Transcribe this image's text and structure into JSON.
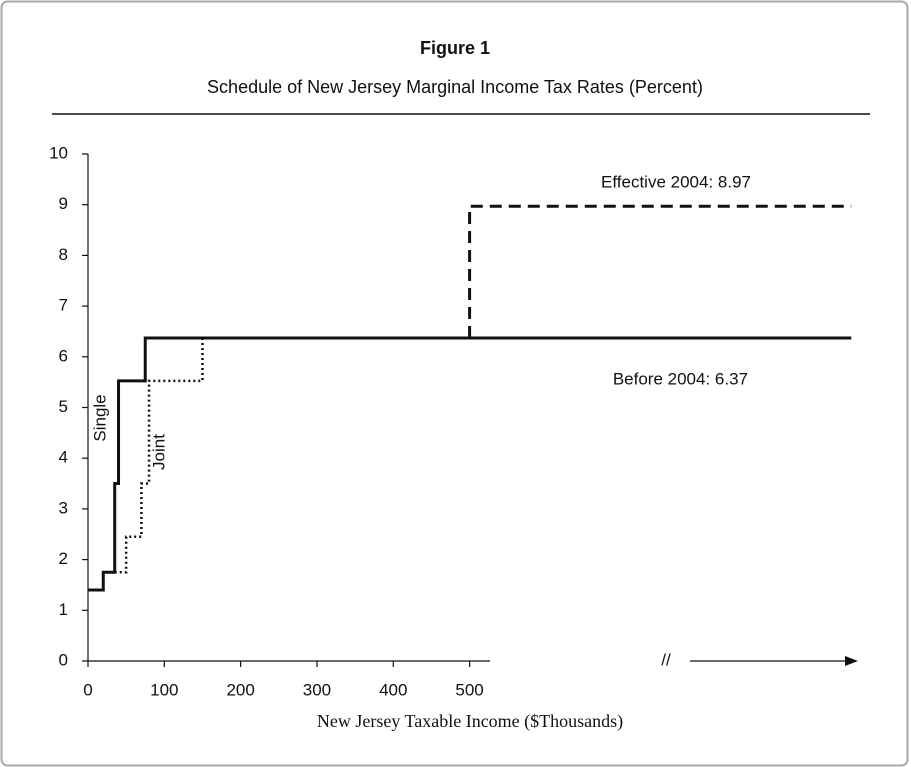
{
  "chart_data": {
    "type": "line",
    "title": "Figure 1",
    "subtitle": "Schedule of New Jersey Marginal Income Tax Rates (Percent)",
    "x_label": "New Jersey Taxable Income ($Thousands)",
    "axis_break_label": "//",
    "xlim": [
      0,
      1005
    ],
    "xticks": [
      0,
      100,
      200,
      300,
      400,
      500
    ],
    "ylim": [
      0,
      10
    ],
    "yticks": [
      0,
      1,
      2,
      3,
      4,
      5,
      6,
      7,
      8,
      9,
      10
    ],
    "series": [
      {
        "name": "Single",
        "color": "#111111",
        "dash": "solid",
        "x": [
          0,
          20,
          20,
          35,
          35,
          40,
          40,
          75,
          75,
          1000
        ],
        "values": [
          1.4,
          1.4,
          1.75,
          1.75,
          3.5,
          3.5,
          5.525,
          5.525,
          6.37,
          6.37
        ]
      },
      {
        "name": "Joint",
        "color": "#111111",
        "dash": "dotted",
        "x": [
          35,
          50,
          50,
          70,
          70,
          80,
          80,
          150,
          150,
          1000
        ],
        "values": [
          1.75,
          1.75,
          2.45,
          2.45,
          3.5,
          3.5,
          5.525,
          5.525,
          6.37,
          6.37
        ]
      },
      {
        "name": "Effective 2004",
        "color": "#111111",
        "dash": "dashed",
        "x": [
          500,
          500,
          1000
        ],
        "values": [
          6.37,
          8.97,
          8.97
        ]
      }
    ],
    "annotations": [
      "Effective 2004:  8.97",
      "Before 2004:  6.37"
    ]
  }
}
